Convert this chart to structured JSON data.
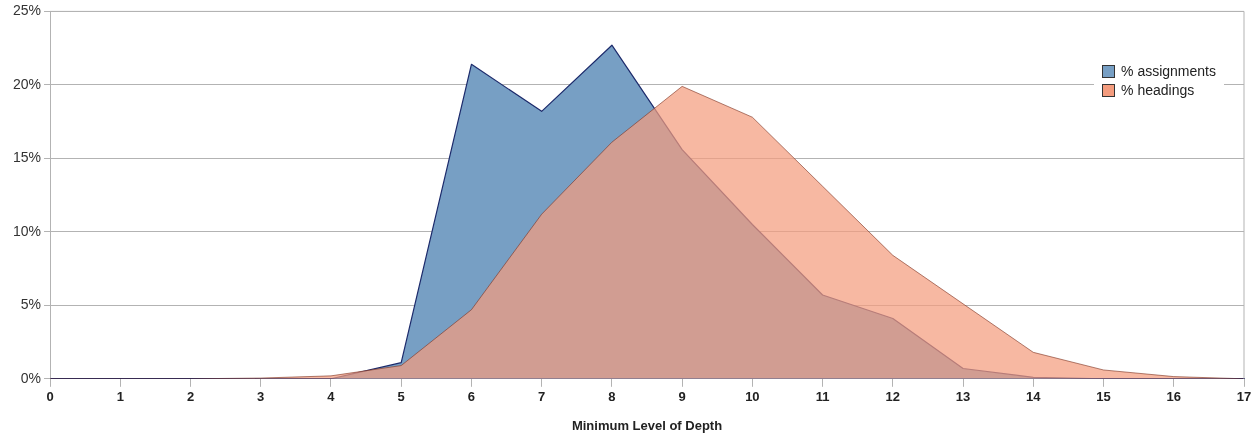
{
  "chart_data": {
    "type": "area",
    "xlabel": "Minimum Level of Depth",
    "x": [
      0,
      1,
      2,
      3,
      4,
      5,
      6,
      7,
      8,
      9,
      10,
      11,
      12,
      13,
      14,
      15,
      16,
      17
    ],
    "series": [
      {
        "name": "% assignments",
        "color": "#779fc4",
        "values": [
          0,
          0,
          0,
          0,
          0,
          1.1,
          21.4,
          18.2,
          22.7,
          15.6,
          10.5,
          5.7,
          4.1,
          0.7,
          0.1,
          0,
          0,
          0
        ]
      },
      {
        "name": "% headings",
        "color": "#f49c7e",
        "values": [
          0,
          0,
          0,
          0.05,
          0.2,
          0.9,
          4.7,
          11.2,
          16.1,
          19.9,
          17.8,
          13.1,
          8.4,
          5.1,
          1.8,
          0.6,
          0.15,
          0
        ]
      }
    ],
    "xlim": [
      0,
      17
    ],
    "xticks": [
      0,
      1,
      2,
      3,
      4,
      5,
      6,
      7,
      8,
      9,
      10,
      11,
      12,
      13,
      14,
      15,
      16,
      17
    ],
    "ylim": [
      0,
      25
    ],
    "yticks": [
      {
        "value": 0,
        "label": "0%"
      },
      {
        "value": 5,
        "label": "5%"
      },
      {
        "value": 10,
        "label": "10%"
      },
      {
        "value": 15,
        "label": "15%"
      },
      {
        "value": 20,
        "label": "20%"
      },
      {
        "value": 25,
        "label": "25%"
      }
    ],
    "grid": "y",
    "legend": "top right"
  }
}
